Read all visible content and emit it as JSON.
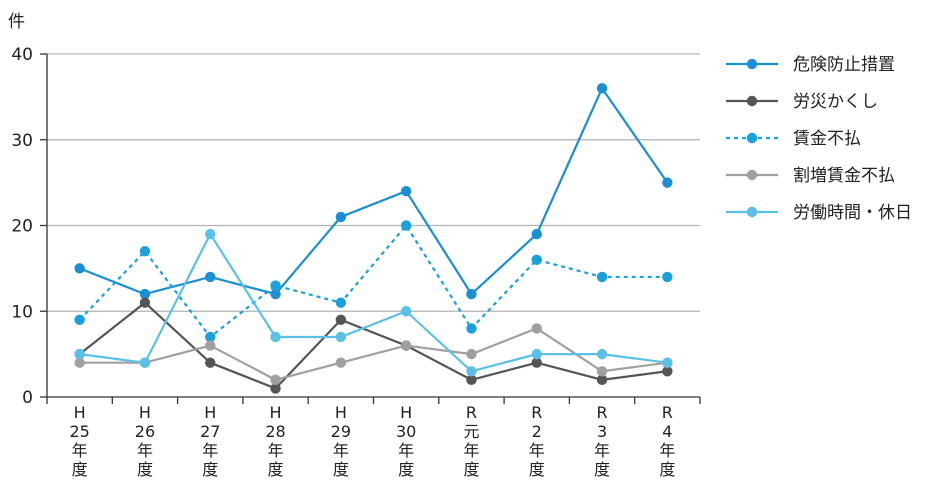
{
  "chart_data": {
    "type": "line",
    "unit": "件",
    "categories": [
      [
        "H",
        "25",
        "年",
        "度"
      ],
      [
        "H",
        "26",
        "年",
        "度"
      ],
      [
        "H",
        "27",
        "年",
        "度"
      ],
      [
        "H",
        "28",
        "年",
        "度"
      ],
      [
        "H",
        "29",
        "年",
        "度"
      ],
      [
        "H",
        "30",
        "年",
        "度"
      ],
      [
        "R",
        "元",
        "年",
        "度"
      ],
      [
        "R",
        "2",
        "年",
        "度"
      ],
      [
        "R",
        "3",
        "年",
        "度"
      ],
      [
        "R",
        "4",
        "年",
        "度"
      ]
    ],
    "ylim": [
      0,
      40
    ],
    "yticks": [
      "0",
      "10",
      "20",
      "30",
      "40"
    ],
    "grid": true,
    "legend_position": "right",
    "series": [
      {
        "name": "危険防止措置",
        "color": "#1a8fd1",
        "dashed": false,
        "values": [
          15,
          12,
          14,
          12,
          21,
          24,
          12,
          19,
          36,
          25
        ]
      },
      {
        "name": "労災かくし",
        "color": "#555555",
        "dashed": false,
        "values": [
          5,
          11,
          4,
          1,
          9,
          6,
          2,
          4,
          2,
          3
        ]
      },
      {
        "name": "賃金不払",
        "color": "#1aa0dc",
        "dashed": true,
        "values": [
          9,
          17,
          7,
          13,
          11,
          20,
          8,
          16,
          14,
          14
        ]
      },
      {
        "name": "割増賃金不払",
        "color": "#a0a0a0",
        "dashed": false,
        "values": [
          4,
          4,
          6,
          2,
          4,
          6,
          5,
          8,
          3,
          4
        ]
      },
      {
        "name": "労働時間・休日",
        "color": "#5bc0e8",
        "dashed": false,
        "values": [
          5,
          4,
          19,
          7,
          7,
          10,
          3,
          5,
          5,
          4
        ]
      }
    ]
  }
}
